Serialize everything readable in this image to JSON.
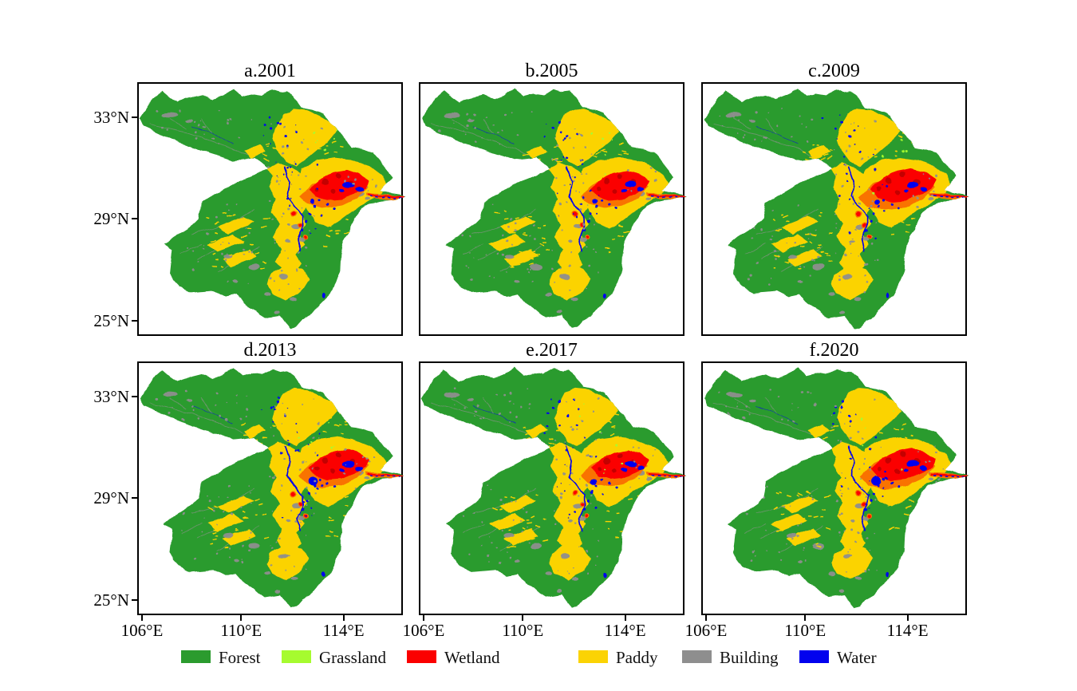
{
  "figure": {
    "background": "#ffffff",
    "description": "Land-use classification maps of the basin for six years"
  },
  "panels": [
    {
      "label": "a.2001"
    },
    {
      "label": "b.2005"
    },
    {
      "label": "c.2009"
    },
    {
      "label": "d.2013"
    },
    {
      "label": "e.2017"
    },
    {
      "label": "f.2020"
    }
  ],
  "axes": {
    "y_tick_labels": [
      "33°N",
      "29°N",
      "25°N"
    ],
    "x_tick_labels": [
      "106°E",
      "110°E",
      "114°E"
    ]
  },
  "legend": {
    "items": [
      {
        "label": "Forest",
        "color": "#2b9b2e"
      },
      {
        "label": "Grassland",
        "color": "#a6fb2f"
      },
      {
        "label": "Wetland",
        "color": "#fb0000"
      },
      {
        "label": "Paddy",
        "color": "#fbd304"
      },
      {
        "label": "Building",
        "color": "#8e8e8e"
      },
      {
        "label": "Water",
        "color": "#0202ee"
      }
    ]
  }
}
